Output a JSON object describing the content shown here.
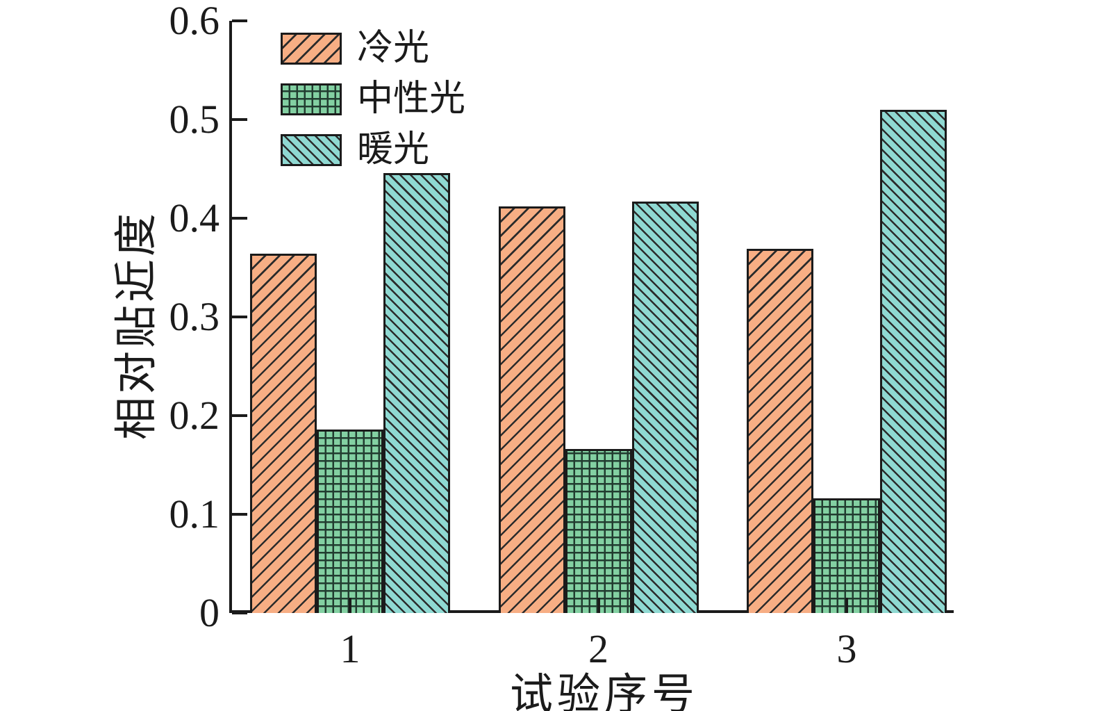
{
  "chart_data": {
    "type": "bar",
    "title": "",
    "xlabel": "试验序号",
    "ylabel": "相对贴近度",
    "categories": [
      "1",
      "2",
      "3"
    ],
    "series": [
      {
        "name": "冷光",
        "key": "cold-light",
        "values": [
          0.364,
          0.412,
          0.369
        ],
        "color": "#F7AE84",
        "hatch": "slash"
      },
      {
        "name": "中性光",
        "key": "neutral-light",
        "values": [
          0.186,
          0.166,
          0.116
        ],
        "color": "#83D0A2",
        "hatch": "grid"
      },
      {
        "name": "暖光",
        "key": "warm-light",
        "values": [
          0.446,
          0.417,
          0.51
        ],
        "color": "#8FD9D2",
        "hatch": "backslash"
      }
    ],
    "ylim": [
      0,
      0.6
    ],
    "yticks": [
      "0",
      "0.1",
      "0.2",
      "0.3",
      "0.4",
      "0.5",
      "0.6"
    ],
    "xticks": [
      "1",
      "2",
      "3"
    ],
    "legend_position": "upper-left",
    "grid": false,
    "axis_color": "#1b1b1b",
    "hatch_line_color": "#2b2b2b"
  }
}
